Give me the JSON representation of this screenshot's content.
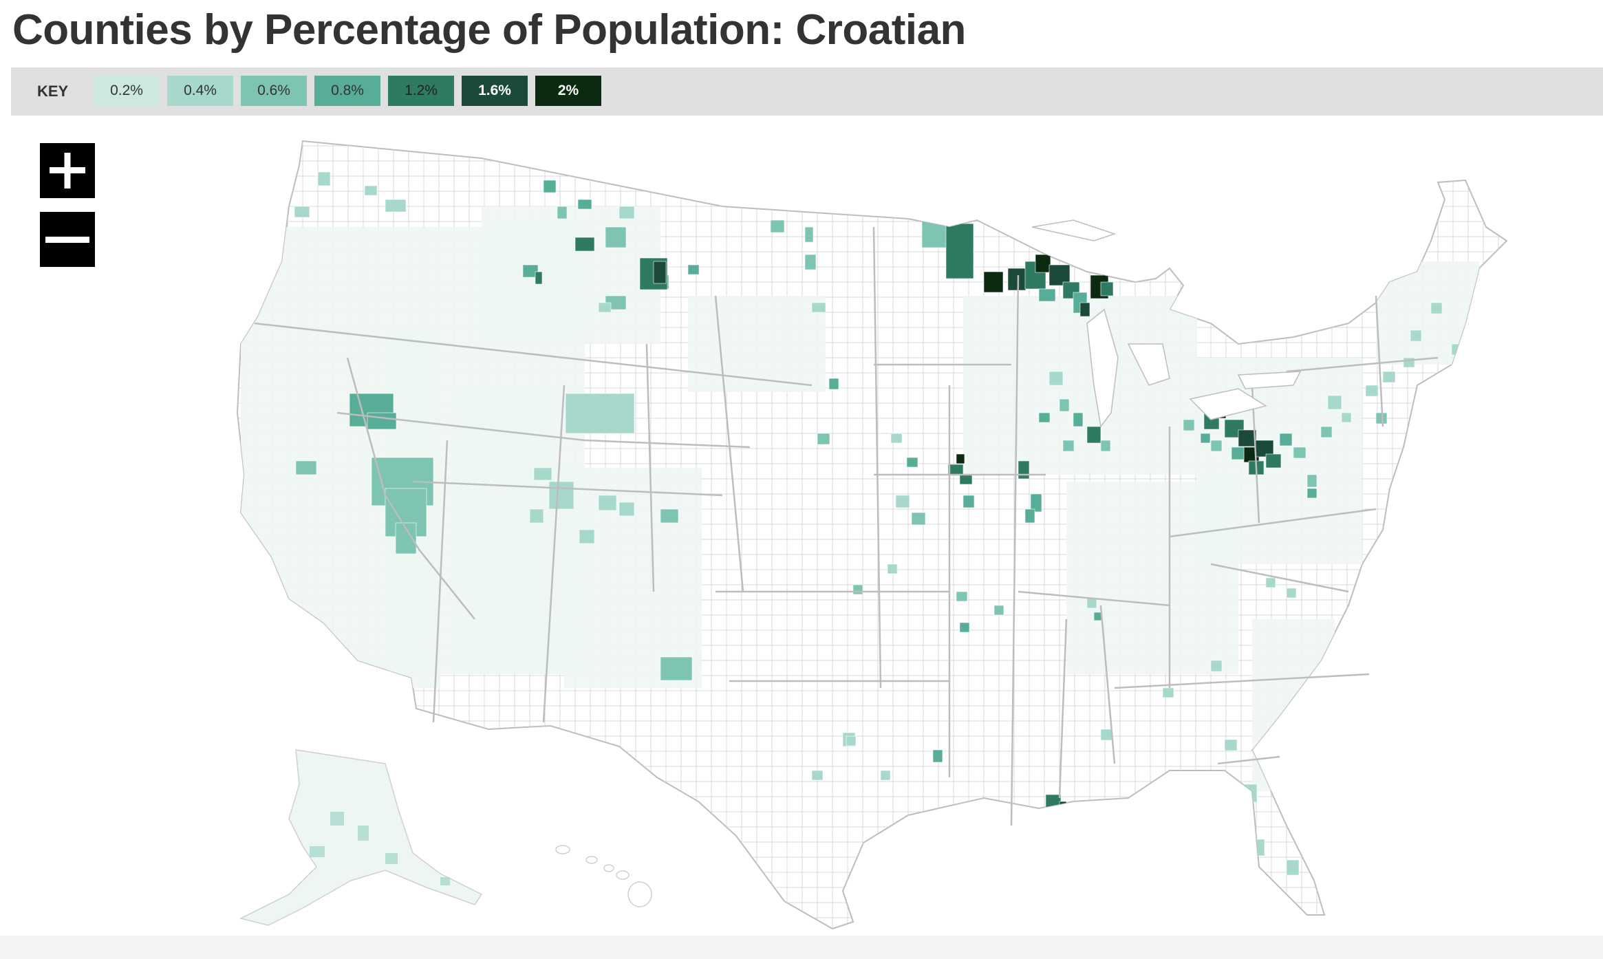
{
  "title": "Counties by Percentage of Population: Croatian",
  "legend": {
    "label": "KEY",
    "items": [
      {
        "label": "0.2%",
        "color": "#cde8e1",
        "text_color": "#333333"
      },
      {
        "label": "0.4%",
        "color": "#a6d8cc",
        "text_color": "#333333"
      },
      {
        "label": "0.6%",
        "color": "#7dc4b3",
        "text_color": "#333333"
      },
      {
        "label": "0.8%",
        "color": "#58ad98",
        "text_color": "#333333"
      },
      {
        "label": "1.2%",
        "color": "#2f7a63",
        "text_color": "#222222"
      },
      {
        "label": "1.6%",
        "color": "#1b4a38",
        "text_color": "#ffffff"
      },
      {
        "label": "2%",
        "color": "#0c2a0f",
        "text_color": "#ffffff"
      }
    ]
  },
  "controls": {
    "zoom_in": "zoom-in",
    "zoom_out": "zoom-out"
  },
  "map": {
    "base_fill": "#ffffff",
    "low_fill": "#eef6f3",
    "border_color": "#cfcfcf",
    "state_border_color": "#bdbdbd"
  }
}
